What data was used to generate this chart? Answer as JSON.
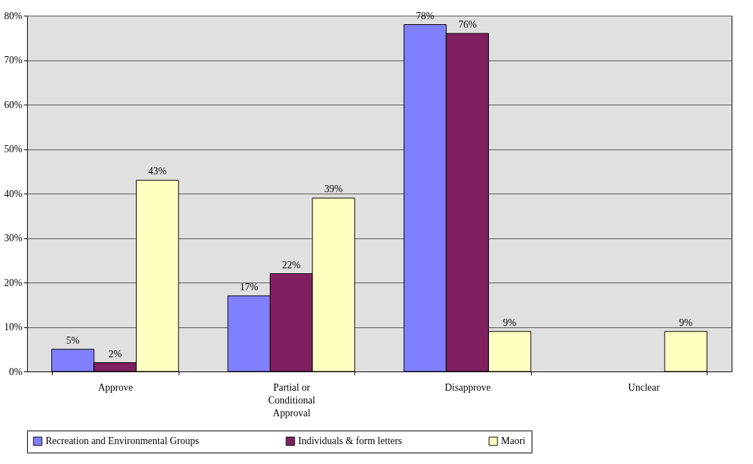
{
  "chart_data": {
    "type": "bar",
    "categories": [
      "Approve",
      "Partial or Conditional Approval",
      "Disapprove",
      "Unclear"
    ],
    "series": [
      {
        "name": "Recreation and Environmental Groups",
        "color": "#8080ff",
        "values": [
          5,
          17,
          78,
          null
        ],
        "value_labels": [
          "5%",
          "17%",
          "78%",
          null
        ]
      },
      {
        "name": "Individuals & form letters",
        "color": "#802060",
        "values": [
          2,
          22,
          76,
          null
        ],
        "value_labels": [
          "2%",
          "22%",
          "76%",
          null
        ]
      },
      {
        "name": "Maori",
        "color": "#ffffc0",
        "values": [
          43,
          39,
          9,
          9
        ],
        "value_labels": [
          "43%",
          "39%",
          "9%",
          "9%"
        ]
      }
    ],
    "ylim": [
      0,
      80
    ],
    "yticks": [
      {
        "value": 0,
        "label": "0%"
      },
      {
        "value": 10,
        "label": "10%"
      },
      {
        "value": 20,
        "label": "20%"
      },
      {
        "value": 30,
        "label": "30%"
      },
      {
        "value": 40,
        "label": "40%"
      },
      {
        "value": 50,
        "label": "50%"
      },
      {
        "value": 60,
        "label": "60%"
      },
      {
        "value": 70,
        "label": "70%"
      },
      {
        "value": 80,
        "label": "80%"
      }
    ],
    "grid": "y",
    "legend": "bottom"
  }
}
